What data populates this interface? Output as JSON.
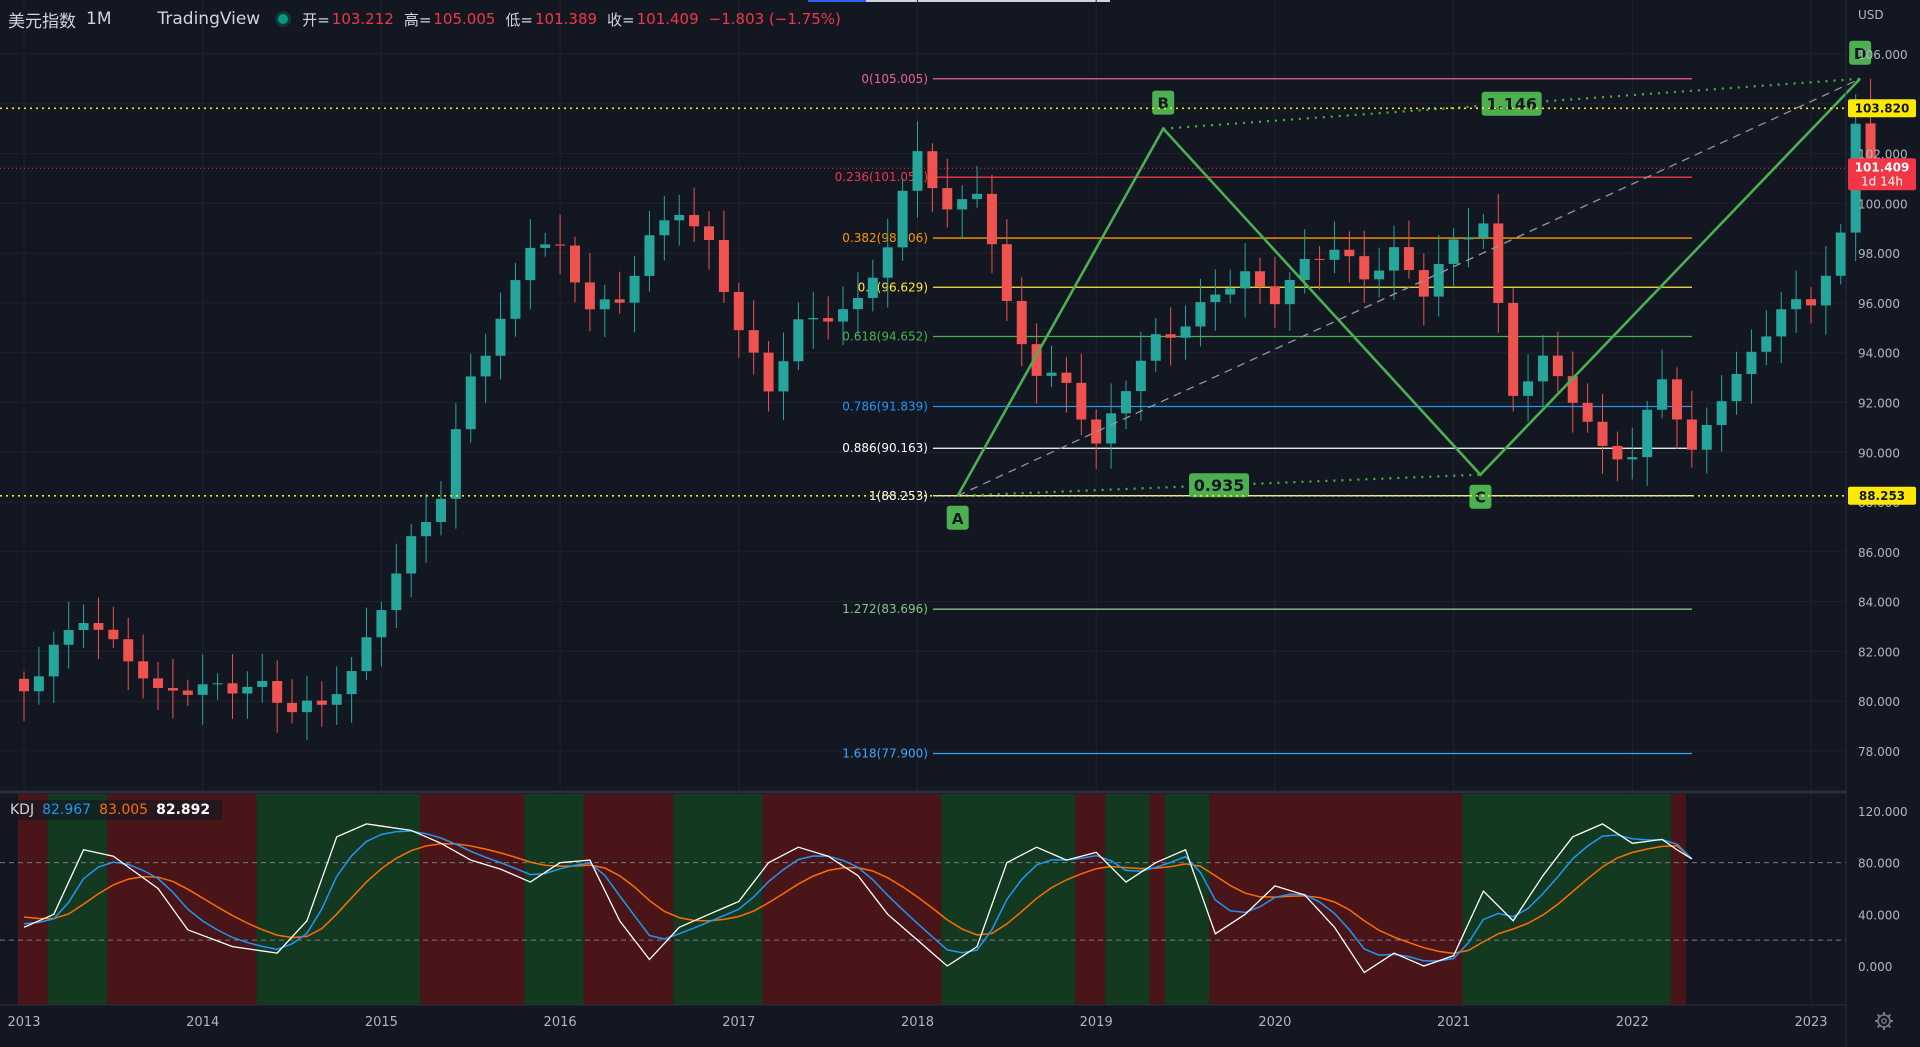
{
  "header": {
    "symbol": "美元指数",
    "timeframe": "1M",
    "source": "TradingView",
    "open_label": "开=",
    "open": "103.212",
    "high_label": "高=",
    "high": "105.005",
    "low_label": "低=",
    "low": "101.389",
    "close_label": "收=",
    "close": "101.409",
    "change": "−1.803 (−1.75%)"
  },
  "price_axis": {
    "currency": "USD",
    "ticks": [
      "106.000",
      "104.000",
      "102.000",
      "100.000",
      "98.000",
      "96.000",
      "94.000",
      "92.000",
      "90.000",
      "88.000",
      "86.000",
      "84.000",
      "82.000",
      "80.000",
      "78.000"
    ],
    "labels": [
      {
        "text": "103.820",
        "color": "#ffe900",
        "text_color": "#131722"
      },
      {
        "text": "101.409",
        "sub": "1d 14h",
        "color": "#f23645",
        "text_color": "#ffffff"
      },
      {
        "text": "88.253",
        "color": "#ffe900",
        "text_color": "#131722"
      }
    ]
  },
  "time_axis": [
    "2013",
    "2014",
    "2015",
    "2016",
    "2017",
    "2018",
    "2019",
    "2020",
    "2021",
    "2022",
    "2023"
  ],
  "fib_levels": [
    {
      "label": "0(105.005)",
      "value": 105.005,
      "color": "#f06292"
    },
    {
      "label": "0.236(101.052)",
      "value": 101.052,
      "color": "#f23645"
    },
    {
      "label": "0.382(98.606)",
      "value": 98.606,
      "color": "#ff9800"
    },
    {
      "label": "0.5(96.629)",
      "value": 96.629,
      "color": "#ffeb3b"
    },
    {
      "label": "0.618(94.652)",
      "value": 94.652,
      "color": "#4caf50"
    },
    {
      "label": "0.786(91.839)",
      "value": 91.839,
      "color": "#2196f3"
    },
    {
      "label": "0.886(90.163)",
      "value": 90.163,
      "color": "#ffffff"
    },
    {
      "label": "1(88.253)",
      "value": 88.253,
      "color": "#ffffff"
    },
    {
      "label": "1.272(83.696)",
      "value": 83.696,
      "color": "#81c784"
    },
    {
      "label": "1.618(77.900)",
      "value": 77.9,
      "color": "#42a5f5"
    }
  ],
  "pattern": {
    "points": [
      "A",
      "B",
      "C",
      "D"
    ],
    "ratios": [
      "0.935",
      "1.146"
    ],
    "color": "#4caf50"
  },
  "kdj": {
    "title": "KDJ",
    "k": "82.967",
    "d": "83.005",
    "j": "82.892",
    "k_color": "#2196f3",
    "d_color": "#ff6d00",
    "j_color": "#ffffff",
    "ticks": [
      "120.000",
      "80.000",
      "40.000",
      "0.000"
    ]
  },
  "colors": {
    "up": "#26a69a",
    "down": "#ef5350",
    "bg": "#131722",
    "bull_zone": "#133a20",
    "bear_zone": "#4a1518"
  }
}
